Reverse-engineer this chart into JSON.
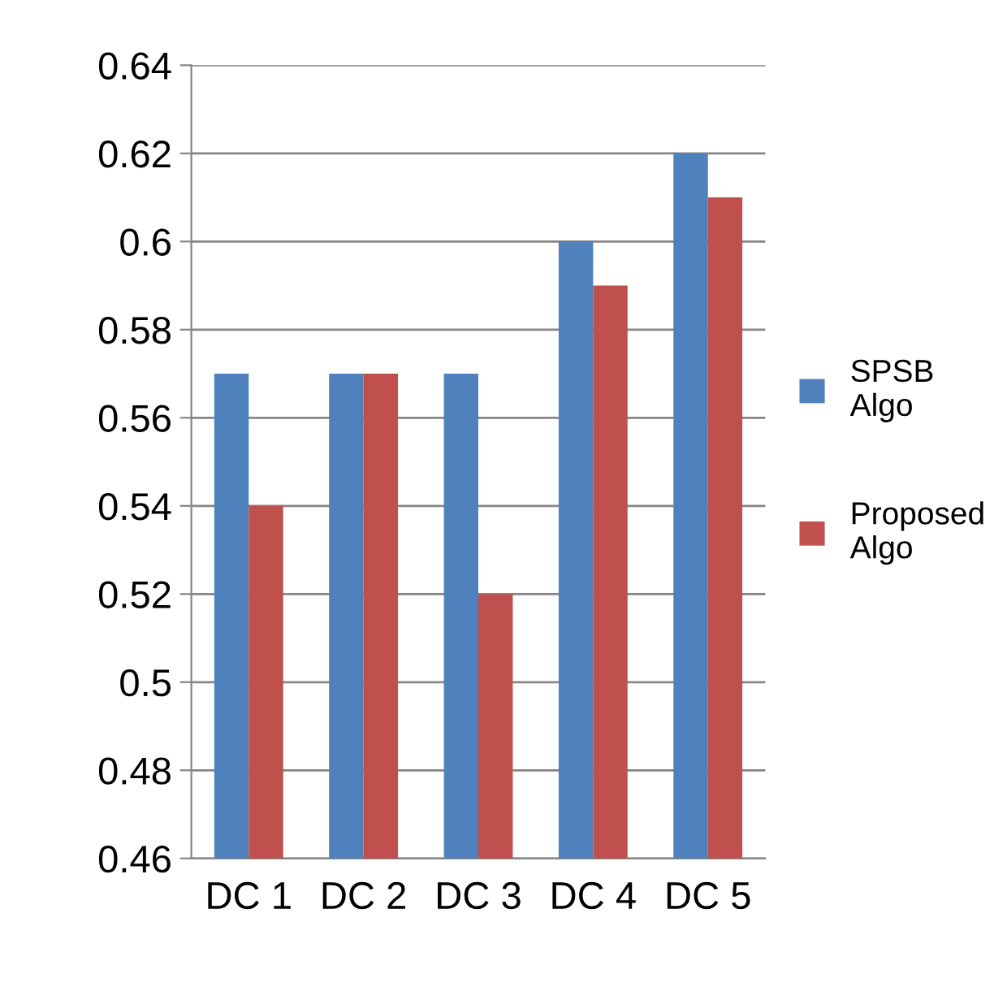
{
  "chart_data": {
    "type": "bar",
    "categories": [
      "DC 1",
      "DC 2",
      "DC 3",
      "DC 4",
      "DC 5"
    ],
    "series": [
      {
        "name": "SPSB Algo",
        "color": "#4f81bd",
        "values": [
          0.57,
          0.57,
          0.57,
          0.6,
          0.62
        ]
      },
      {
        "name": "Proposed Algo",
        "color": "#c0504d",
        "values": [
          0.54,
          0.57,
          0.52,
          0.59,
          0.61
        ]
      }
    ],
    "ylim": [
      0.46,
      0.64
    ],
    "yticks": [
      0.46,
      0.48,
      0.5,
      0.52,
      0.54,
      0.56,
      0.58,
      0.6,
      0.62,
      0.64
    ],
    "grid": "y",
    "legend": "right"
  }
}
